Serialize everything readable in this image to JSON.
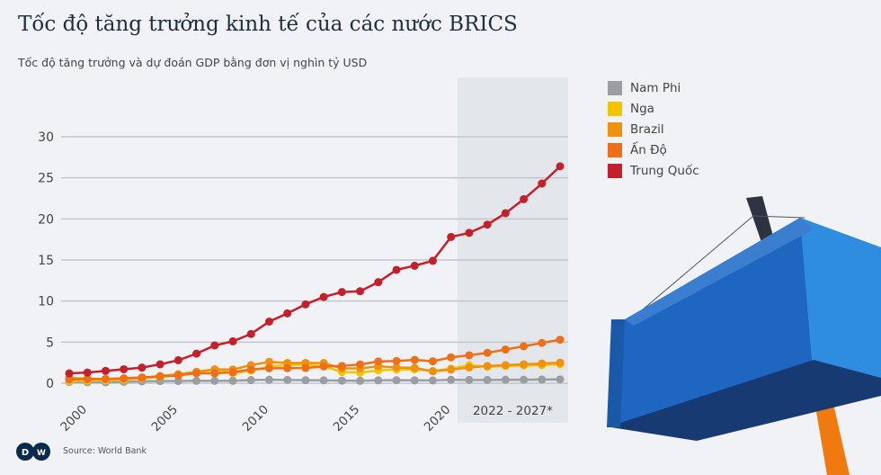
{
  "title": "Tốc độ tăng trưởng kinh tế của các nước BRICS",
  "subtitle": "Tốc độ tăng trưởng và dự đoán GDP bằng đơn vị nghìn tỷ USD",
  "source": "Source: World Bank",
  "logo_text": "DW",
  "chart_data": {
    "type": "line",
    "title": "Tốc độ tăng trưởng kinh tế của các nước BRICS",
    "subtitle": "Tốc độ tăng trưởng và dự đoán GDP bằng đơn vị nghìn tỷ USD",
    "x": [
      2000,
      2001,
      2002,
      2003,
      2004,
      2005,
      2006,
      2007,
      2008,
      2009,
      2010,
      2011,
      2012,
      2013,
      2014,
      2015,
      2016,
      2017,
      2018,
      2019,
      2020,
      2021,
      2022,
      2023,
      2024,
      2025,
      2026,
      2027
    ],
    "xlim": [
      2000,
      2027
    ],
    "ylim": [
      0,
      30
    ],
    "y_ticks": [
      0,
      5,
      10,
      15,
      20,
      25,
      30
    ],
    "x_ticks": [
      2000,
      2005,
      2010,
      2015,
      2020
    ],
    "grid": true,
    "legend": "right",
    "forecast_band": {
      "from": 2022,
      "to": 2027,
      "label": "2022 - 2027*"
    },
    "series": [
      {
        "name": "Nam Phi",
        "color": "#9a9ea3",
        "values": [
          0.15,
          0.12,
          0.11,
          0.17,
          0.23,
          0.26,
          0.27,
          0.3,
          0.29,
          0.3,
          0.38,
          0.42,
          0.4,
          0.37,
          0.35,
          0.32,
          0.3,
          0.35,
          0.37,
          0.35,
          0.34,
          0.42,
          0.4,
          0.4,
          0.42,
          0.43,
          0.45,
          0.47
        ]
      },
      {
        "name": "Nga",
        "color": "#f2c500",
        "values": [
          0.26,
          0.31,
          0.35,
          0.43,
          0.59,
          0.76,
          0.99,
          1.3,
          1.66,
          1.22,
          1.52,
          2.05,
          2.21,
          2.29,
          2.06,
          1.36,
          1.28,
          1.57,
          1.66,
          1.69,
          1.49,
          1.78,
          2.2,
          2.0,
          2.1,
          2.15,
          2.2,
          2.3
        ]
      },
      {
        "name": "Brazil",
        "color": "#f0900f",
        "values": [
          0.65,
          0.56,
          0.51,
          0.56,
          0.67,
          0.89,
          1.1,
          1.4,
          1.7,
          1.67,
          2.2,
          2.6,
          2.47,
          2.47,
          2.46,
          1.8,
          1.8,
          2.06,
          1.92,
          1.87,
          1.45,
          1.65,
          1.92,
          2.1,
          2.2,
          2.3,
          2.4,
          2.5
        ]
      },
      {
        "name": "Ấn Độ",
        "color": "#ee6f18",
        "values": [
          0.47,
          0.49,
          0.52,
          0.6,
          0.7,
          0.82,
          0.94,
          1.22,
          1.2,
          1.34,
          1.68,
          1.82,
          1.83,
          1.86,
          2.04,
          2.1,
          2.29,
          2.65,
          2.7,
          2.84,
          2.67,
          3.15,
          3.4,
          3.7,
          4.1,
          4.5,
          4.9,
          5.3
        ]
      },
      {
        "name": "Trung Quốc",
        "color": "#c4202c",
        "values": [
          1.2,
          1.3,
          1.5,
          1.7,
          1.9,
          2.3,
          2.8,
          3.6,
          4.6,
          5.1,
          6.0,
          7.5,
          8.5,
          9.6,
          10.5,
          11.1,
          11.2,
          12.3,
          13.8,
          14.3,
          14.9,
          17.8,
          18.3,
          19.3,
          20.7,
          22.4,
          24.3,
          26.4
        ]
      }
    ]
  }
}
